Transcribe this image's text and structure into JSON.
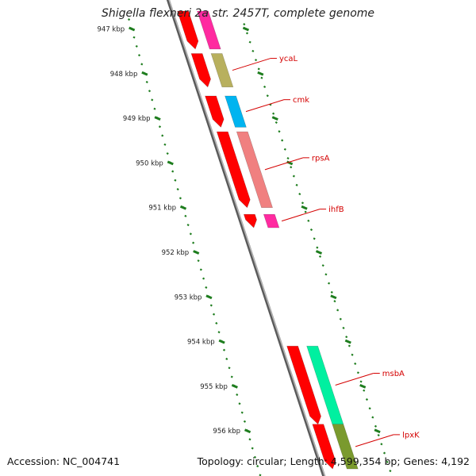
{
  "title": "Shigella flexneri 2a str. 2457T, complete genome",
  "footer": {
    "accession": "Accession: NC_004741",
    "summary": "Topology: circular; Length: 4,599,354 bp; Genes: 4,192"
  },
  "axis": {
    "unit": "kbp",
    "ticks": [
      "947 kbp",
      "948 kbp",
      "949 kbp",
      "950 kbp",
      "951 kbp",
      "952 kbp",
      "953 kbp",
      "954 kbp",
      "955 kbp",
      "956 kbp"
    ]
  },
  "colors": {
    "backbone": "#888888",
    "tick_major": "#1e7d1e",
    "cds": "#ff0000",
    "label": "#d40000"
  },
  "genes": [
    {
      "name": "",
      "start_kbp": 946.6,
      "end_kbp": 947.45,
      "color": "#ff2aa0",
      "cds_color": "#ff0000"
    },
    {
      "name": "ycaL",
      "start_kbp": 947.55,
      "end_kbp": 948.3,
      "color": "#b8b05e",
      "cds_color": "#ff0000"
    },
    {
      "name": "cmk",
      "start_kbp": 948.5,
      "end_kbp": 949.2,
      "color": "#00b4f0",
      "cds_color": "#ff0000"
    },
    {
      "name": "rpsA",
      "start_kbp": 949.3,
      "end_kbp": 951.0,
      "color": "#f08080",
      "cds_color": "#ff0000"
    },
    {
      "name": "ihfB",
      "start_kbp": 951.15,
      "end_kbp": 951.45,
      "color": "#ff2aa0",
      "cds_color": "#ff0000"
    },
    {
      "name": "msbA",
      "start_kbp": 954.1,
      "end_kbp": 955.85,
      "color": "#00f0a0",
      "cds_color": "#ff0000"
    },
    {
      "name": "lpxK",
      "start_kbp": 955.85,
      "end_kbp": 956.85,
      "color": "#7a9a2e",
      "cds_color": "#ff0000"
    }
  ]
}
